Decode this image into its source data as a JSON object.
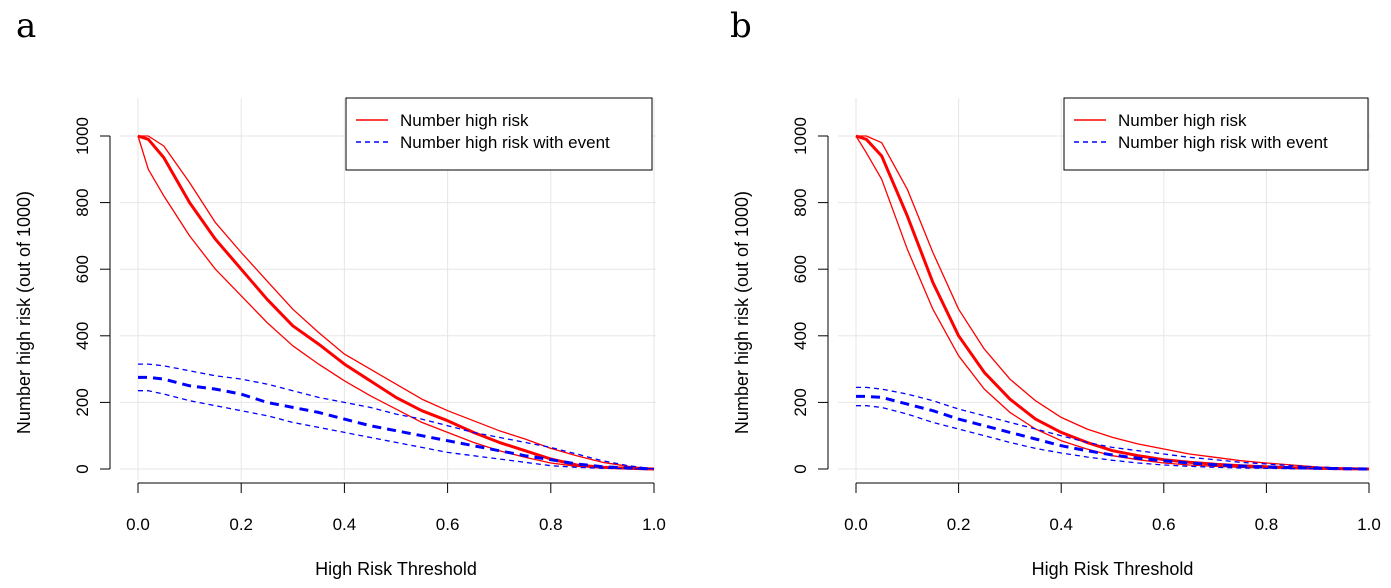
{
  "chart_data": [
    {
      "panel_label": "a",
      "type": "line",
      "xlabel": "High Risk Threshold",
      "ylabel": "Number high risk (out of 1000)",
      "xlim": [
        0.0,
        1.0
      ],
      "ylim": [
        0,
        1000
      ],
      "xticks": [
        "0.0",
        "0.2",
        "0.4",
        "0.6",
        "0.8",
        "1.0"
      ],
      "yticks": [
        "0",
        "200",
        "400",
        "600",
        "800",
        "1000"
      ],
      "grid": true,
      "legend_position": "top-right",
      "legend": [
        {
          "label": "Number high risk",
          "color": "#ff0000",
          "style": "solid"
        },
        {
          "label": "Number high risk with event",
          "color": "#0000ff",
          "style": "dashed"
        }
      ],
      "x": [
        0.0,
        0.02,
        0.05,
        0.1,
        0.15,
        0.2,
        0.25,
        0.3,
        0.35,
        0.4,
        0.45,
        0.5,
        0.55,
        0.6,
        0.65,
        0.7,
        0.75,
        0.8,
        0.85,
        0.9,
        0.95,
        1.0
      ],
      "series": [
        {
          "role": "Number high risk",
          "kind": "estimate",
          "color": "#ff0000",
          "dash": "solid",
          "width": 3,
          "values": [
            1000,
            990,
            935,
            800,
            690,
            600,
            510,
            430,
            375,
            315,
            265,
            215,
            175,
            145,
            110,
            80,
            55,
            30,
            12,
            5,
            2,
            0
          ]
        },
        {
          "role": "Number high risk",
          "kind": "upper",
          "color": "#ff0000",
          "dash": "solid",
          "width": 1.3,
          "values": [
            1000,
            1000,
            970,
            860,
            740,
            650,
            565,
            480,
            410,
            345,
            300,
            255,
            210,
            175,
            145,
            115,
            90,
            62,
            40,
            20,
            8,
            0
          ]
        },
        {
          "role": "Number high risk",
          "kind": "lower",
          "color": "#ff0000",
          "dash": "solid",
          "width": 1.3,
          "values": [
            1000,
            900,
            820,
            700,
            600,
            520,
            440,
            370,
            315,
            265,
            220,
            180,
            140,
            110,
            80,
            55,
            35,
            18,
            8,
            3,
            1,
            0
          ]
        },
        {
          "role": "Number high risk with event",
          "kind": "estimate",
          "color": "#0000ff",
          "dash": "dashed",
          "width": 3,
          "values": [
            275,
            275,
            270,
            250,
            240,
            225,
            200,
            185,
            170,
            150,
            130,
            115,
            100,
            85,
            70,
            55,
            40,
            28,
            15,
            7,
            3,
            0
          ]
        },
        {
          "role": "Number high risk with event",
          "kind": "upper",
          "color": "#0000ff",
          "dash": "dashed",
          "width": 1.3,
          "values": [
            315,
            315,
            310,
            295,
            280,
            270,
            255,
            235,
            215,
            200,
            185,
            165,
            150,
            130,
            110,
            95,
            80,
            65,
            45,
            25,
            10,
            0
          ]
        },
        {
          "role": "Number high risk with event",
          "kind": "lower",
          "color": "#0000ff",
          "dash": "dashed",
          "width": 1.3,
          "values": [
            235,
            235,
            225,
            205,
            190,
            175,
            160,
            140,
            125,
            110,
            95,
            80,
            65,
            50,
            40,
            30,
            20,
            10,
            5,
            2,
            1,
            0
          ]
        }
      ]
    },
    {
      "panel_label": "b",
      "type": "line",
      "xlabel": "High Risk Threshold",
      "ylabel": "Number high risk (out of 1000)",
      "xlim": [
        0.0,
        1.0
      ],
      "ylim": [
        0,
        1000
      ],
      "xticks": [
        "0.0",
        "0.2",
        "0.4",
        "0.6",
        "0.8",
        "1.0"
      ],
      "yticks": [
        "0",
        "200",
        "400",
        "600",
        "800",
        "1000"
      ],
      "grid": true,
      "legend_position": "top-right",
      "legend": [
        {
          "label": "Number high risk",
          "color": "#ff0000",
          "style": "solid"
        },
        {
          "label": "Number high risk with event",
          "color": "#0000ff",
          "style": "dashed"
        }
      ],
      "x": [
        0.0,
        0.02,
        0.05,
        0.1,
        0.15,
        0.2,
        0.25,
        0.3,
        0.35,
        0.4,
        0.45,
        0.5,
        0.55,
        0.6,
        0.65,
        0.7,
        0.75,
        0.8,
        0.85,
        0.9,
        0.95,
        1.0
      ],
      "series": [
        {
          "role": "Number high risk",
          "kind": "estimate",
          "color": "#ff0000",
          "dash": "solid",
          "width": 3,
          "values": [
            1000,
            990,
            940,
            760,
            560,
            400,
            290,
            210,
            150,
            110,
            80,
            55,
            40,
            28,
            20,
            14,
            10,
            7,
            4,
            2,
            1,
            0
          ]
        },
        {
          "role": "Number high risk",
          "kind": "upper",
          "color": "#ff0000",
          "dash": "solid",
          "width": 1.3,
          "values": [
            1000,
            1000,
            980,
            840,
            650,
            480,
            360,
            270,
            205,
            155,
            120,
            95,
            75,
            60,
            45,
            35,
            25,
            18,
            12,
            6,
            3,
            0
          ]
        },
        {
          "role": "Number high risk",
          "kind": "lower",
          "color": "#ff0000",
          "dash": "solid",
          "width": 1.3,
          "values": [
            1000,
            950,
            870,
            660,
            480,
            340,
            240,
            170,
            120,
            85,
            60,
            40,
            28,
            18,
            12,
            8,
            5,
            3,
            2,
            1,
            0,
            0
          ]
        },
        {
          "role": "Number high risk with event",
          "kind": "estimate",
          "color": "#0000ff",
          "dash": "dashed",
          "width": 3,
          "values": [
            218,
            218,
            215,
            195,
            175,
            150,
            130,
            110,
            90,
            70,
            55,
            42,
            32,
            25,
            18,
            13,
            9,
            6,
            4,
            2,
            1,
            0
          ]
        },
        {
          "role": "Number high risk with event",
          "kind": "upper",
          "color": "#0000ff",
          "dash": "dashed",
          "width": 1.3,
          "values": [
            245,
            245,
            240,
            225,
            205,
            180,
            160,
            140,
            120,
            100,
            80,
            65,
            55,
            45,
            35,
            28,
            20,
            15,
            10,
            6,
            3,
            0
          ]
        },
        {
          "role": "Number high risk with event",
          "kind": "lower",
          "color": "#0000ff",
          "dash": "dashed",
          "width": 1.3,
          "values": [
            190,
            190,
            185,
            165,
            140,
            120,
            100,
            80,
            62,
            48,
            36,
            26,
            18,
            12,
            8,
            5,
            3,
            2,
            1,
            1,
            0,
            0
          ]
        }
      ]
    }
  ]
}
